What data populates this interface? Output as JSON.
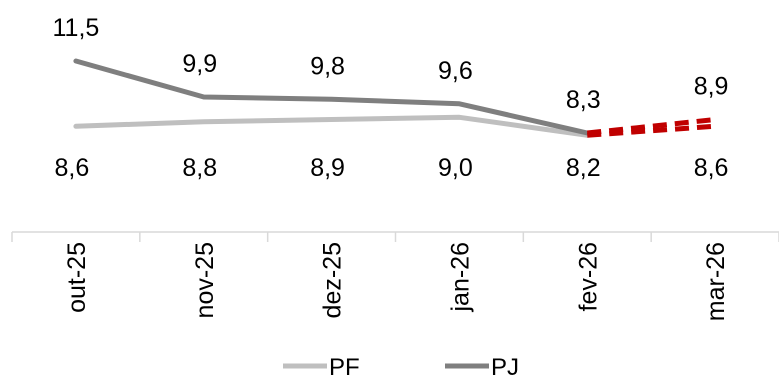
{
  "chart_data": {
    "type": "line",
    "categories": [
      "out-25",
      "nov-25",
      "dez-25",
      "jan-26",
      "fev-26",
      "mar-26"
    ],
    "series": [
      {
        "name": "PF",
        "color": "#bfbfbf",
        "values": [
          8.6,
          8.8,
          8.9,
          9.0,
          8.2,
          8.6
        ],
        "labels": [
          "8,6",
          "8,8",
          "8,9",
          "9,0",
          "8,2",
          "8,6"
        ]
      },
      {
        "name": "PJ",
        "color": "#7f7f7f",
        "values": [
          11.5,
          9.9,
          9.8,
          9.6,
          8.3,
          8.9
        ],
        "labels": [
          "11,5",
          "9,9",
          "9,8",
          "9,6",
          "8,3",
          "8,9"
        ]
      }
    ],
    "projection": {
      "from_index": 4,
      "to_index": 5,
      "color": "#c00000",
      "style": "dashed"
    },
    "title": "",
    "xlabel": "",
    "ylabel": "",
    "ylim": [
      7.5,
      12.5
    ],
    "grid": false,
    "legend": "bottom-center"
  }
}
